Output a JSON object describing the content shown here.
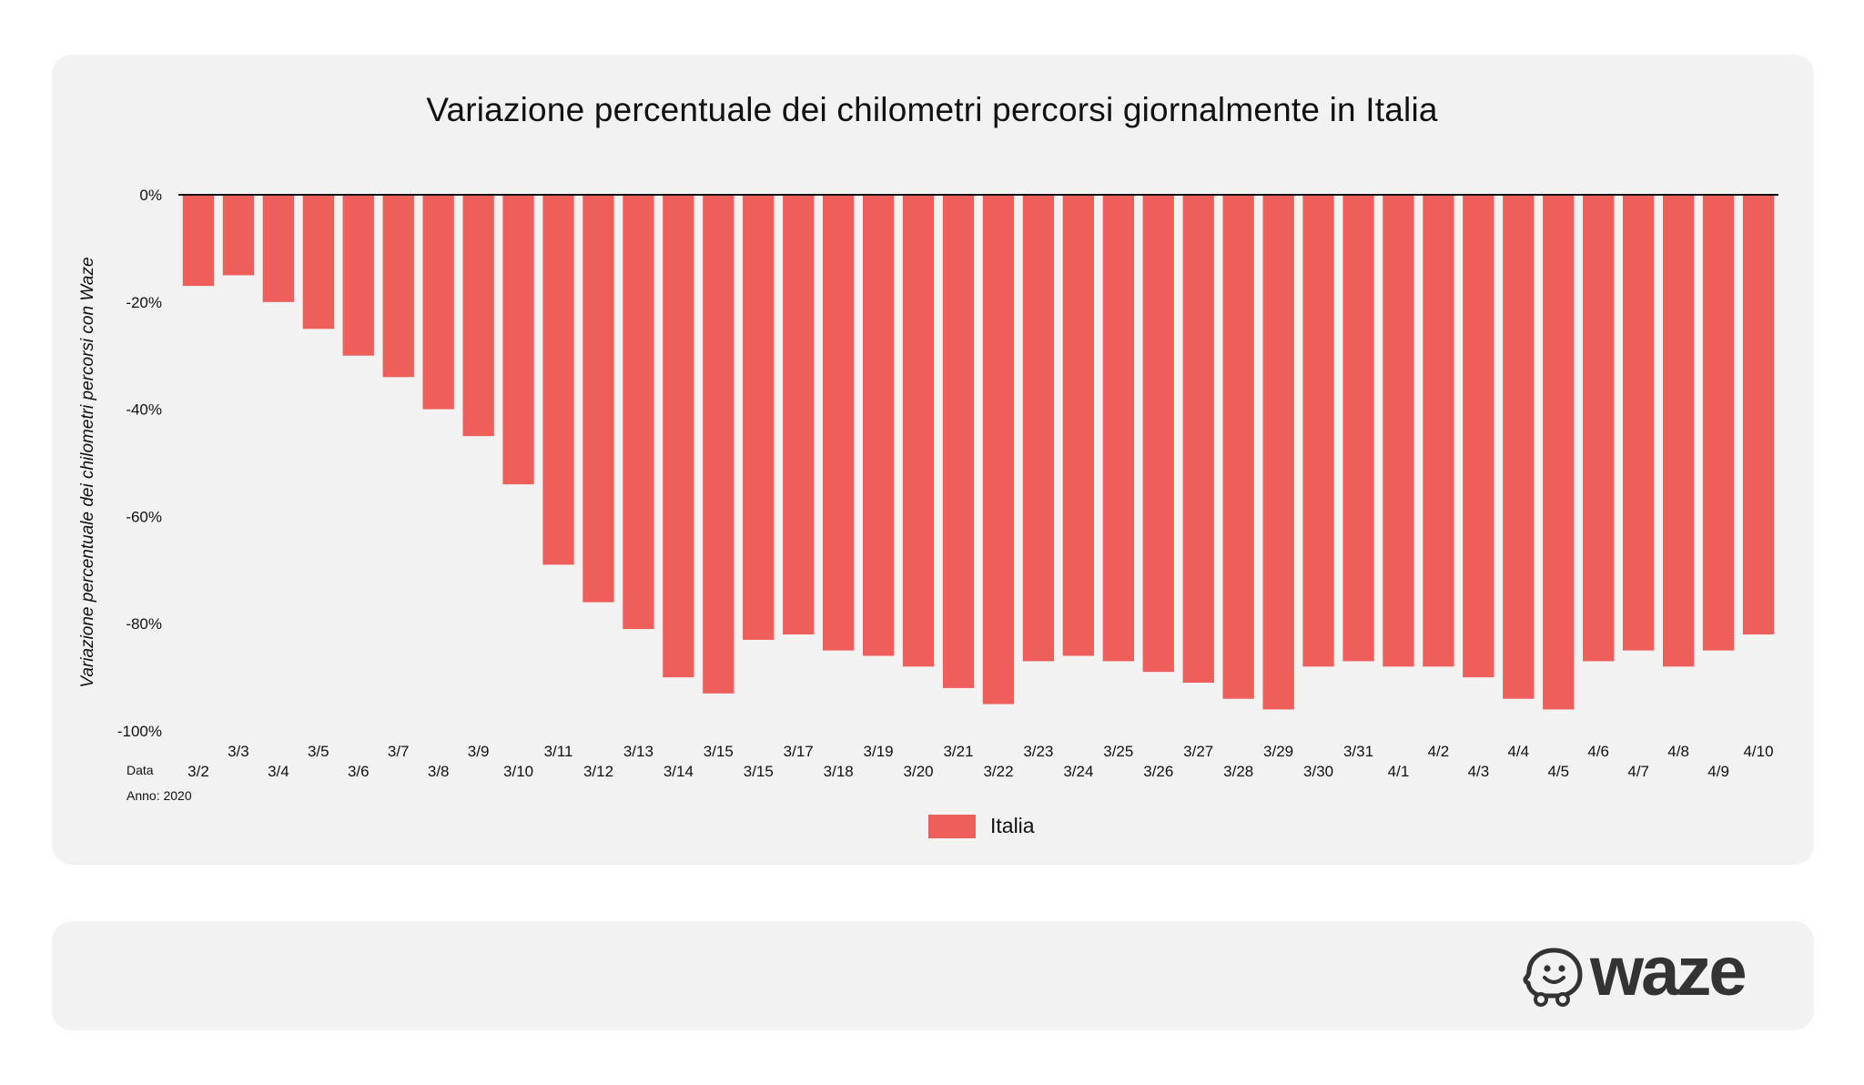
{
  "title": "Variazione percentuale dei chilometri percorsi giornalmente in Italia",
  "ylabel": "Variazione percentuale dei chilometri percorsi con Waze",
  "xaxis_label": "Data",
  "year_note": "Anno: 2020",
  "brand": "waze",
  "colors": {
    "bar": "#ee5e5a",
    "card": "#f2f2f2",
    "axis": "#111111"
  },
  "icons": {
    "logo": "waze-smiley-icon"
  },
  "chart_data": {
    "type": "bar",
    "title": "Variazione percentuale dei chilometri percorsi giornalmente in Italia",
    "xlabel": "Data",
    "ylabel": "Variazione percentuale dei chilometri percorsi con Waze",
    "ylim": [
      -100,
      0
    ],
    "yticks": [
      "0%",
      "-20%",
      "-40%",
      "-60%",
      "-80%",
      "-100%"
    ],
    "ytick_values": [
      0,
      -20,
      -40,
      -60,
      -80,
      -100
    ],
    "categories": [
      "3/2",
      "3/3",
      "3/4",
      "3/5",
      "3/6",
      "3/7",
      "3/8",
      "3/9",
      "3/10",
      "3/11",
      "3/12",
      "3/13",
      "3/14",
      "3/15",
      "3/15",
      "3/17",
      "3/18",
      "3/19",
      "3/20",
      "3/21",
      "3/22",
      "3/23",
      "3/24",
      "3/25",
      "3/26",
      "3/27",
      "3/28",
      "3/29",
      "3/30",
      "3/31",
      "4/1",
      "4/2",
      "4/3",
      "4/4",
      "4/5",
      "4/6",
      "4/7",
      "4/8",
      "4/9",
      "4/10"
    ],
    "series": [
      {
        "name": "Italia",
        "values": [
          -17,
          -15,
          -20,
          -25,
          -30,
          -34,
          -40,
          -45,
          -54,
          -69,
          -76,
          -81,
          -90,
          -93,
          -83,
          -82,
          -85,
          -86,
          -88,
          -92,
          -95,
          -87,
          -86,
          -87,
          -89,
          -91,
          -94,
          -96,
          -88,
          -87,
          -88,
          -88,
          -90,
          -94,
          -96,
          -87,
          -85,
          -88,
          -85,
          -82
        ]
      }
    ],
    "legend": "bottom-center",
    "grid": false
  }
}
